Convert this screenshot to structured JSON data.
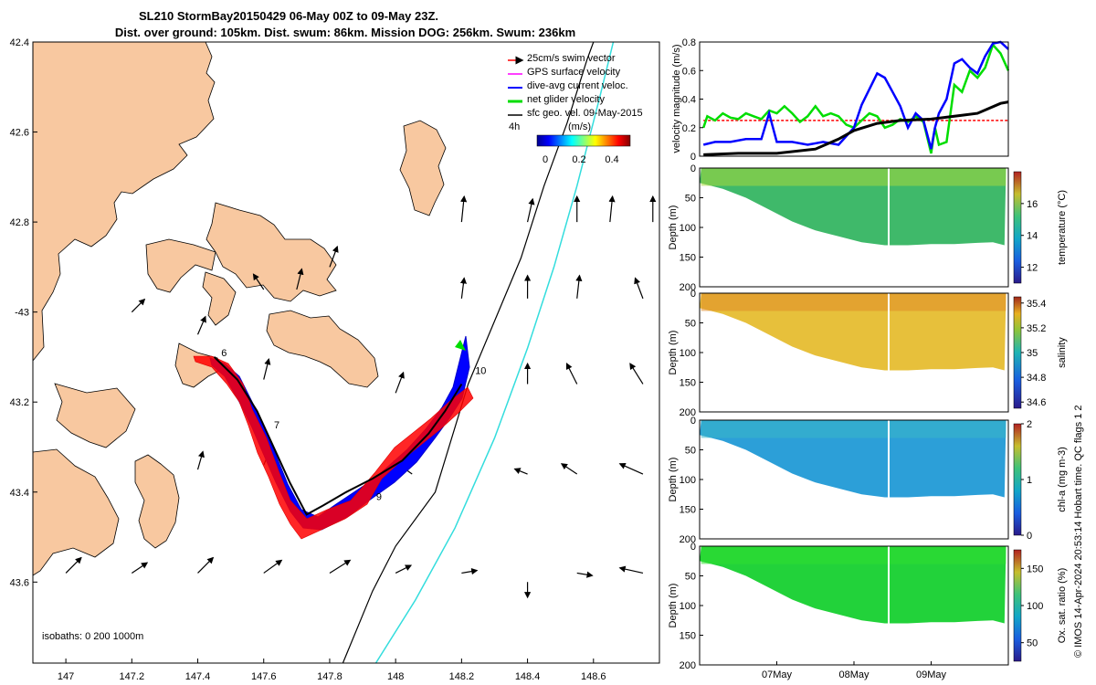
{
  "title_line1": "SL210 StormBay20150429 06-May 00Z to 09-May 23Z.",
  "title_line2": "Dist. over ground: 105km. Dist. swum: 86km. Mission DOG: 256km. Swum: 236km",
  "colors": {
    "land": "#f8c8a0",
    "glider_track": "#000000",
    "isobath_200": "#000000",
    "isobath_1000": "#33dddd",
    "swim": "#ff0000",
    "gps": "#ff00ff",
    "dive_avg": "#0000ff",
    "net": "#00dd00",
    "sfc": "#000000"
  },
  "chart_data": [
    {
      "type": "map",
      "name": "track-map",
      "xlim": [
        146.9,
        148.8
      ],
      "ylim": [
        -43.78,
        -42.4
      ],
      "xticks": [
        147,
        147.2,
        147.4,
        147.6,
        147.8,
        148,
        148.2,
        148.4,
        148.6
      ],
      "xtick_labels": [
        "147",
        "147.2",
        "147.4",
        "147.6",
        "147.8",
        "148",
        "148.2",
        "148.4",
        "148.6"
      ],
      "yticks": [
        -42.4,
        -42.6,
        -42.8,
        -43,
        -43.2,
        -43.4,
        -43.6
      ],
      "ytick_labels": [
        "42.4",
        "42.6",
        "42.8",
        "-43",
        "43.2",
        "43.4",
        "43.6"
      ],
      "legend": {
        "position": "top-right",
        "entries": [
          {
            "label": "25cm/s swim vector",
            "color": "#ff0000"
          },
          {
            "label": "GPS surface velocity",
            "color": "#ff00ff"
          },
          {
            "label": "dive-avg current veloc.",
            "color": "#0000ff"
          },
          {
            "label": "net glider velocity",
            "color": "#00dd00"
          },
          {
            "label": "sfc geo. vel. 09-May-2015",
            "color": "#000000"
          }
        ],
        "scale_label": "4h",
        "colorbar_unit": "(m/s)",
        "colorbar_ticks": [
          "0",
          "0.2",
          "0.4"
        ]
      },
      "isobath_note": "isobaths: 0   200  1000m",
      "track": [
        [
          147.45,
          -43.1
        ],
        [
          147.52,
          -43.15
        ],
        [
          147.58,
          -43.22
        ],
        [
          147.63,
          -43.3
        ],
        [
          147.68,
          -43.38
        ],
        [
          147.73,
          -43.45
        ],
        [
          147.78,
          -43.43
        ],
        [
          147.85,
          -43.4
        ],
        [
          147.93,
          -43.37
        ],
        [
          148.02,
          -43.33
        ],
        [
          148.1,
          -43.27
        ],
        [
          148.15,
          -43.22
        ],
        [
          148.2,
          -43.16
        ]
      ],
      "day_labels": [
        {
          "text": "6",
          "lon": 147.46,
          "lat": -43.09
        },
        {
          "text": "7",
          "lon": 147.62,
          "lat": -43.25
        },
        {
          "text": "9",
          "lon": 147.93,
          "lat": -43.41
        },
        {
          "text": "10",
          "lon": 148.23,
          "lat": -43.13
        }
      ],
      "current_arrows": [
        [
          147.6,
          -42.95,
          -0.4,
          0.6
        ],
        [
          147.7,
          -42.95,
          0.2,
          0.8
        ],
        [
          147.8,
          -42.9,
          0.3,
          0.8
        ],
        [
          148.2,
          -42.8,
          0.1,
          1
        ],
        [
          148.4,
          -42.8,
          0.2,
          0.9
        ],
        [
          148.55,
          -42.8,
          0,
          1
        ],
        [
          148.65,
          -42.8,
          0.1,
          1
        ],
        [
          148.78,
          -42.8,
          0,
          1
        ],
        [
          147.2,
          -43.0,
          0.5,
          0.5
        ],
        [
          147.4,
          -43.05,
          0.3,
          0.7
        ],
        [
          148.2,
          -42.97,
          0.1,
          0.8
        ],
        [
          148.4,
          -42.97,
          0,
          0.9
        ],
        [
          148.55,
          -42.97,
          0.1,
          0.9
        ],
        [
          148.75,
          -42.97,
          -0.3,
          0.8
        ],
        [
          147.6,
          -43.15,
          0.2,
          0.8
        ],
        [
          148.0,
          -43.18,
          0.3,
          0.8
        ],
        [
          148.4,
          -43.16,
          0,
          0.8
        ],
        [
          148.55,
          -43.16,
          -0.4,
          0.8
        ],
        [
          148.75,
          -43.16,
          -0.5,
          0.8
        ],
        [
          147.4,
          -43.35,
          0.2,
          0.7
        ],
        [
          147.6,
          -43.34,
          0.3,
          0.7
        ],
        [
          148.05,
          -43.36,
          -0.7,
          0.5
        ],
        [
          148.4,
          -43.36,
          -0.5,
          0.2
        ],
        [
          148.55,
          -43.36,
          -0.6,
          0.4
        ],
        [
          148.75,
          -43.36,
          -0.9,
          0.4
        ],
        [
          147.0,
          -43.58,
          0.6,
          0.6
        ],
        [
          147.2,
          -43.58,
          0.6,
          0.4
        ],
        [
          147.4,
          -43.58,
          0.6,
          0.6
        ],
        [
          147.6,
          -43.58,
          0.7,
          0.5
        ],
        [
          147.8,
          -43.58,
          0.8,
          0.5
        ],
        [
          148.0,
          -43.58,
          0.6,
          0.3
        ],
        [
          148.2,
          -43.58,
          0.6,
          0.1
        ],
        [
          148.4,
          -43.6,
          0,
          -0.6
        ],
        [
          148.55,
          -43.58,
          0.6,
          -0.1
        ],
        [
          148.75,
          -43.58,
          -0.9,
          0.2
        ]
      ]
    },
    {
      "type": "line",
      "name": "velocity-magnitude",
      "ylabel": "velocity magnitude (m/s)",
      "ylim": [
        0,
        0.8
      ],
      "yticks": [
        0,
        0.2,
        0.4,
        0.6,
        0.8
      ],
      "ytick_labels": [
        "0",
        "0.2",
        "0.4",
        "0.6",
        "0.8"
      ],
      "xlim": [
        6.0,
        10.0
      ],
      "series": [
        {
          "name": "swim",
          "color": "#ff0000",
          "dashed": true,
          "x": [
            6.05,
            10.0
          ],
          "values": [
            0.25,
            0.25
          ]
        },
        {
          "name": "net",
          "color": "#00dd00",
          "x": [
            6.05,
            6.1,
            6.2,
            6.3,
            6.4,
            6.5,
            6.6,
            6.7,
            6.8,
            6.9,
            7.0,
            7.1,
            7.2,
            7.3,
            7.4,
            7.5,
            7.6,
            7.7,
            7.8,
            7.9,
            8.0,
            8.1,
            8.2,
            8.3,
            8.4,
            8.5,
            8.6,
            8.7,
            8.8,
            8.9,
            9.0,
            9.05,
            9.1,
            9.2,
            9.3,
            9.4,
            9.5,
            9.6,
            9.7,
            9.8,
            9.9,
            10.0
          ],
          "values": [
            0.2,
            0.28,
            0.25,
            0.3,
            0.27,
            0.26,
            0.3,
            0.28,
            0.26,
            0.32,
            0.3,
            0.35,
            0.3,
            0.24,
            0.28,
            0.35,
            0.28,
            0.3,
            0.28,
            0.22,
            0.2,
            0.25,
            0.3,
            0.28,
            0.2,
            0.22,
            0.26,
            0.24,
            0.28,
            0.24,
            0.02,
            0.2,
            0.08,
            0.1,
            0.5,
            0.45,
            0.6,
            0.55,
            0.62,
            0.78,
            0.72,
            0.6
          ]
        },
        {
          "name": "dive_avg",
          "color": "#0000ff",
          "x": [
            6.05,
            6.2,
            6.4,
            6.6,
            6.8,
            6.9,
            7.0,
            7.2,
            7.4,
            7.6,
            7.8,
            8.0,
            8.1,
            8.3,
            8.4,
            8.5,
            8.6,
            8.7,
            8.8,
            8.9,
            9.0,
            9.05,
            9.1,
            9.2,
            9.3,
            9.4,
            9.5,
            9.6,
            9.7,
            9.8,
            9.9,
            10.0
          ],
          "values": [
            0.08,
            0.1,
            0.1,
            0.12,
            0.12,
            0.3,
            0.1,
            0.1,
            0.08,
            0.1,
            0.08,
            0.2,
            0.36,
            0.58,
            0.55,
            0.45,
            0.35,
            0.2,
            0.3,
            0.25,
            0.05,
            0.2,
            0.3,
            0.4,
            0.65,
            0.68,
            0.62,
            0.58,
            0.7,
            0.79,
            0.8,
            0.75
          ]
        },
        {
          "name": "sfc",
          "color": "#000000",
          "x": [
            6.05,
            6.5,
            7.0,
            7.5,
            7.8,
            8.0,
            8.3,
            8.6,
            9.0,
            9.3,
            9.6,
            9.9,
            10.0
          ],
          "values": [
            0.01,
            0.02,
            0.02,
            0.05,
            0.12,
            0.18,
            0.23,
            0.25,
            0.26,
            0.28,
            0.3,
            0.37,
            0.38
          ]
        }
      ]
    },
    {
      "type": "heatmap",
      "name": "temperature-section",
      "ylabel": "Depth (m)",
      "ylim": [
        0,
        200
      ],
      "yticks": [
        0,
        50,
        100,
        150,
        200
      ],
      "colorbar_label": "temperature (°C)",
      "colorbar_range": [
        11,
        18
      ],
      "colorbar_ticks": [
        "12",
        "14",
        "16"
      ],
      "near_surface": 15.5,
      "mid_depth": 14.5,
      "deep": 14.2
    },
    {
      "type": "heatmap",
      "name": "salinity-section",
      "ylabel": "Depth (m)",
      "ylim": [
        0,
        200
      ],
      "yticks": [
        0,
        50,
        100,
        150,
        200
      ],
      "colorbar_label": "salinity",
      "colorbar_range": [
        34.55,
        35.45
      ],
      "colorbar_ticks": [
        "34.6",
        "34.8",
        "35",
        "35.2",
        "35.4"
      ],
      "near_surface": 35.2,
      "mid_depth": 35.05,
      "deep": 35.15
    },
    {
      "type": "heatmap",
      "name": "chla-section",
      "ylabel": "Depth (m)",
      "ylim": [
        0,
        200
      ],
      "yticks": [
        0,
        50,
        100,
        150,
        200
      ],
      "colorbar_label": "chl-a (mg m-3)",
      "colorbar_range": [
        0,
        2
      ],
      "colorbar_ticks": [
        "0",
        "1",
        "2"
      ],
      "near_surface": 0.9,
      "mid_depth": 0.6,
      "deep": 0.5
    },
    {
      "type": "heatmap",
      "name": "oxygen-section",
      "ylabel": "Depth (m)",
      "ylim": [
        0,
        200
      ],
      "yticks": [
        0,
        50,
        100,
        150,
        200
      ],
      "colorbar_label": "Ox. sat. ratio (%)",
      "colorbar_range": [
        25,
        175
      ],
      "colorbar_ticks": [
        "50",
        "100",
        "150"
      ],
      "near_surface": 100,
      "mid_depth": 100,
      "deep": 100
    }
  ],
  "time_axis": {
    "labels": [
      "07May",
      "08May",
      "09May"
    ],
    "days": [
      7,
      8,
      9
    ],
    "start_day": 6.0,
    "end_day": 10.0,
    "bottom_depth": [
      [
        6.0,
        25
      ],
      [
        6.3,
        35
      ],
      [
        6.6,
        50
      ],
      [
        6.9,
        70
      ],
      [
        7.2,
        90
      ],
      [
        7.5,
        105
      ],
      [
        7.8,
        115
      ],
      [
        8.1,
        125
      ],
      [
        8.4,
        130
      ],
      [
        8.7,
        130
      ],
      [
        9.0,
        128
      ],
      [
        9.3,
        128
      ],
      [
        9.6,
        126
      ],
      [
        9.8,
        125
      ],
      [
        9.95,
        130
      ]
    ]
  },
  "footer": "© IMOS 14-Apr-2024 20:53:14 Hobart time. QC flags 1  2"
}
